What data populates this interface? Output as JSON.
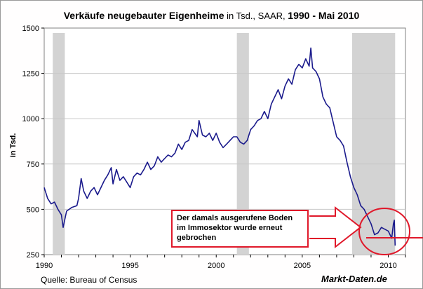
{
  "title": {
    "part1": "Verkäufe neugebauter Eigenheime",
    "part2": " in Tsd., SAAR, ",
    "part3": "1990 -  Mai 2010"
  },
  "source": "Quelle: Bureau of Census",
  "brand": "Markt-Daten.de",
  "annotation": "Der damals ausgerufene Boden im Immosektor wurde erneut gebrochen",
  "colors": {
    "line": "#1a1a8c",
    "recession": "#d3d3d3",
    "annotation": "#e0182a",
    "grid": "#c8c8c8"
  },
  "chart_data": {
    "type": "line",
    "ylabel": "in Tsd.",
    "xlabel": "",
    "xlim": [
      1990,
      2011
    ],
    "ylim": [
      250,
      1500
    ],
    "xticks": [
      1990,
      1995,
      2000,
      2005,
      2010
    ],
    "yticks": [
      250,
      500,
      750,
      1000,
      1250,
      1500
    ],
    "grid": "horizontal",
    "recessions": [
      [
        1990.5,
        1991.2
      ],
      [
        2001.2,
        2001.9
      ],
      [
        2007.9,
        2010.4
      ]
    ],
    "series": [
      {
        "x": [
          1990.0,
          1990.2,
          1990.4,
          1990.6,
          1990.8,
          1991.0,
          1991.1,
          1991.3,
          1991.6,
          1991.9,
          1992.0,
          1992.15,
          1992.3,
          1992.5,
          1992.7,
          1992.9,
          1993.1,
          1993.3,
          1993.5,
          1993.7,
          1993.9,
          1994.0,
          1994.2,
          1994.4,
          1994.6,
          1994.8,
          1995.0,
          1995.2,
          1995.4,
          1995.6,
          1995.8,
          1996.0,
          1996.2,
          1996.4,
          1996.6,
          1996.8,
          1997.0,
          1997.2,
          1997.4,
          1997.6,
          1997.8,
          1998.0,
          1998.2,
          1998.4,
          1998.6,
          1998.9,
          1999.0,
          1999.2,
          1999.4,
          1999.6,
          1999.8,
          2000.0,
          2000.2,
          2000.4,
          2000.6,
          2000.8,
          2001.0,
          2001.2,
          2001.4,
          2001.6,
          2001.8,
          2002.0,
          2002.2,
          2002.4,
          2002.6,
          2002.8,
          2003.0,
          2003.2,
          2003.4,
          2003.6,
          2003.8,
          2004.0,
          2004.2,
          2004.4,
          2004.6,
          2004.8,
          2005.0,
          2005.2,
          2005.4,
          2005.5,
          2005.6,
          2005.8,
          2006.0,
          2006.2,
          2006.4,
          2006.6,
          2006.8,
          2007.0,
          2007.2,
          2007.4,
          2007.6,
          2007.8,
          2008.0,
          2008.2,
          2008.4,
          2008.6,
          2008.8,
          2009.0,
          2009.2,
          2009.4,
          2009.6,
          2009.8,
          2010.0,
          2010.2,
          2010.3,
          2010.35,
          2010.4
        ],
        "y": [
          620,
          560,
          530,
          540,
          500,
          470,
          400,
          490,
          510,
          520,
          560,
          670,
          600,
          560,
          600,
          620,
          580,
          620,
          660,
          690,
          730,
          640,
          720,
          660,
          680,
          650,
          620,
          680,
          700,
          690,
          720,
          760,
          720,
          740,
          790,
          760,
          780,
          800,
          790,
          810,
          860,
          830,
          870,
          880,
          940,
          900,
          990,
          910,
          900,
          920,
          880,
          920,
          870,
          840,
          860,
          880,
          900,
          900,
          870,
          860,
          880,
          940,
          960,
          990,
          1000,
          1040,
          1000,
          1080,
          1120,
          1160,
          1110,
          1180,
          1220,
          1190,
          1270,
          1300,
          1280,
          1330,
          1290,
          1390,
          1280,
          1260,
          1220,
          1120,
          1080,
          1060,
          980,
          900,
          880,
          850,
          760,
          680,
          620,
          580,
          520,
          500,
          460,
          420,
          360,
          370,
          400,
          390,
          380,
          340,
          420,
          440,
          300
        ]
      }
    ]
  }
}
